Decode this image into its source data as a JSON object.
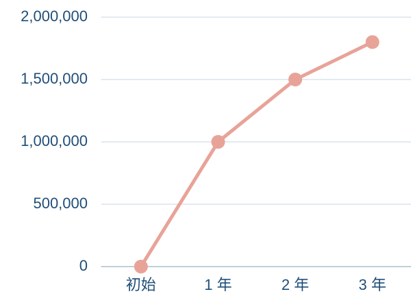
{
  "chart_data": {
    "type": "line",
    "categories": [
      "初始",
      "1 年",
      "2 年",
      "3 年"
    ],
    "series": [
      {
        "color": "#e8a398",
        "values": [
          0,
          1000000,
          1500000,
          1800000
        ]
      }
    ],
    "ylim": [
      0,
      2000000
    ],
    "yticks": [
      0,
      {
        "value": 500000,
        "label": "500,000"
      },
      {
        "value": 1000000,
        "label": "1,000,000"
      },
      {
        "value": 1500000,
        "label": "1,500,000"
      },
      {
        "value": 2000000,
        "label": "2,000,000"
      }
    ],
    "grid": true
  }
}
